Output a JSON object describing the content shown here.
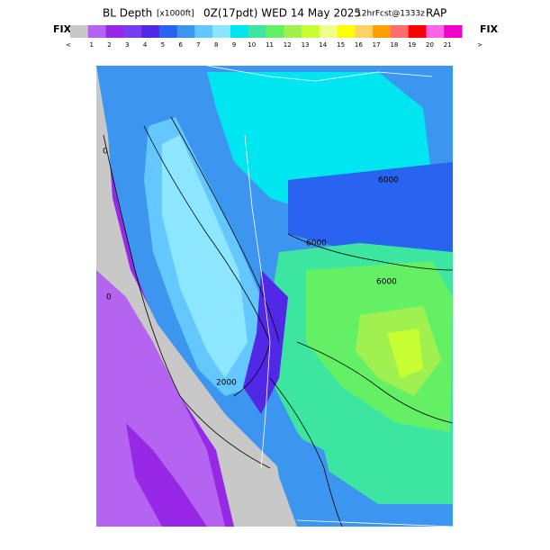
{
  "header": {
    "parts": [
      "BL Depth",
      "[x1000ft]",
      "0Z(17pdt) WED 14 May 2025",
      "12hrFcst@1333z",
      "RAP"
    ],
    "fix_left": "FIX",
    "fix_right": "FIX"
  },
  "colorbar": {
    "labels": [
      "<",
      "1",
      "2",
      "3",
      "4",
      "5",
      "6",
      "7",
      "8",
      "9",
      "10",
      "11",
      "12",
      "13",
      "14",
      "15",
      "16",
      "17",
      "18",
      "19",
      "20",
      "21",
      ">"
    ],
    "colors": [
      "#c8c8c8",
      "#b464f0",
      "#9628e6",
      "#783cf0",
      "#5028e6",
      "#2864f0",
      "#3c96f0",
      "#64c8ff",
      "#8ce6ff",
      "#00e6f0",
      "#3ce6a0",
      "#64f064",
      "#a0f050",
      "#c8ff32",
      "#f0ff8c",
      "#ffff00",
      "#ffd264",
      "#ffa000",
      "#ff6e6e",
      "#ff0000",
      "#ff64e6",
      "#f000c8"
    ]
  },
  "map": {
    "contour_labels": [
      "6000",
      "6000",
      "6000",
      "2000",
      "0",
      "0"
    ]
  }
}
